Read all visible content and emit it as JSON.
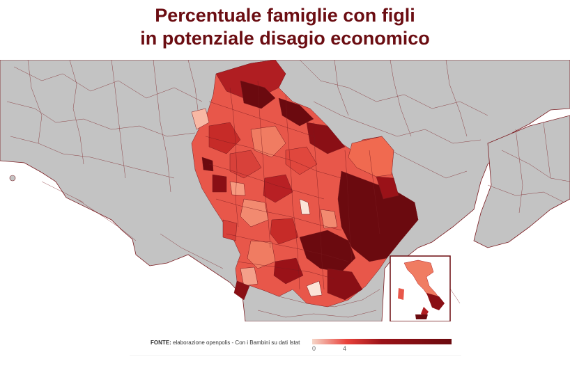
{
  "title": {
    "line1": "Percentuale famiglie con figli",
    "line2": "in potenziale disagio economico"
  },
  "source": {
    "label": "FONTE:",
    "text": "elaborazione openpolis - Con i Bambini su dati Istat"
  },
  "legend": {
    "min_label": "0",
    "mid_label": "4",
    "color_min": "#f6d6c8",
    "color_mid": "#e8413a",
    "color_max": "#6b0a0f"
  },
  "colors": {
    "title": "#6b0d12",
    "land_outside": "#c3c3c3",
    "sea": "#ffffff",
    "border": "#7a1a1f"
  },
  "inset": {
    "name": "italy-overview-map"
  }
}
